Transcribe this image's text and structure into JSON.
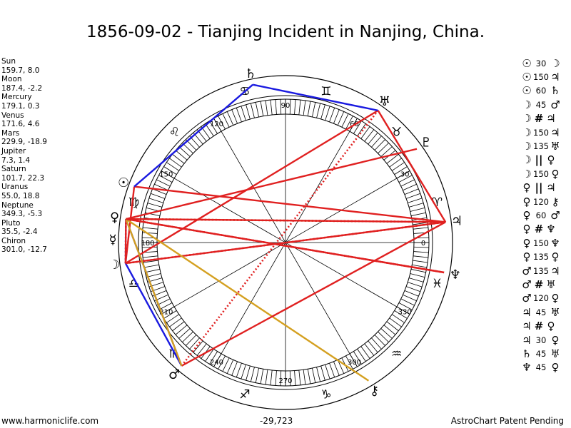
{
  "title": "1856-09-02 - Tianjing Incident in Nanjing, China.",
  "planets": [
    {
      "name": "Sun",
      "glyph": "☉",
      "pos": "159.7, 8.0",
      "lon": 159.7
    },
    {
      "name": "Moon",
      "glyph": "☽",
      "pos": "187.4, -2.2",
      "lon": 187.4
    },
    {
      "name": "Mercury",
      "glyph": "☿",
      "pos": "179.1, 0.3",
      "lon": 179.1
    },
    {
      "name": "Venus",
      "glyph": "♀",
      "pos": "171.6, 4.6",
      "lon": 171.6
    },
    {
      "name": "Mars",
      "glyph": "♂",
      "pos": "229.9, -18.9",
      "lon": 229.9
    },
    {
      "name": "Jupiter",
      "glyph": "♃",
      "pos": "7.3, 1.4",
      "lon": 7.3
    },
    {
      "name": "Saturn",
      "glyph": "♄",
      "pos": "101.7, 22.3",
      "lon": 101.7
    },
    {
      "name": "Uranus",
      "glyph": "♅",
      "pos": "55.0, 18.8",
      "lon": 55.0
    },
    {
      "name": "Neptune",
      "glyph": "♆",
      "pos": "349.3, -5.3",
      "lon": 349.3
    },
    {
      "name": "Pluto",
      "glyph": "♇",
      "pos": "35.5, -2.4",
      "lon": 35.5
    },
    {
      "name": "Chiron",
      "glyph": "⚷",
      "pos": "301.0, -12.7",
      "lon": 301.0
    }
  ],
  "zodiac_glyphs": [
    "♈",
    "♉",
    "♊",
    "♋",
    "♌",
    "♍",
    "♎",
    "♏",
    "♐",
    "♑",
    "♒",
    "♓"
  ],
  "degree_labels": [
    "0",
    "30",
    "60",
    "90",
    "120",
    "150",
    "180",
    "210",
    "240",
    "270",
    "300",
    "330"
  ],
  "aspects": [
    {
      "p1": "☉",
      "aspect": "30",
      "p2": "☽",
      "color": "#e02020",
      "style": "solid"
    },
    {
      "p1": "☉",
      "aspect": "150",
      "p2": "♃",
      "color": "#e02020",
      "style": "solid"
    },
    {
      "p1": "☉",
      "aspect": "60",
      "p2": "♄",
      "color": "#1a1ae0",
      "style": "solid"
    },
    {
      "p1": "☽",
      "aspect": "45",
      "p2": "♂",
      "color": "#1a1ae0",
      "style": "solid"
    },
    {
      "p1": "☽",
      "aspect": "#",
      "p2": "♃",
      "color": "#e02020",
      "style": "dotted"
    },
    {
      "p1": "☽",
      "aspect": "150",
      "p2": "♃",
      "color": "#e02020",
      "style": "solid"
    },
    {
      "p1": "☽",
      "aspect": "135",
      "p2": "♅",
      "color": "#e02020",
      "style": "solid"
    },
    {
      "p1": "☽",
      "aspect": "||",
      "p2": "♀",
      "color": "#1a1ae0",
      "style": "dotted"
    },
    {
      "p1": "☽",
      "aspect": "150",
      "p2": "♀",
      "color": "#e02020",
      "style": "solid"
    },
    {
      "p1": "♀",
      "aspect": "||",
      "p2": "♃",
      "color": "#d4a020",
      "style": "dotted"
    },
    {
      "p1": "♀",
      "aspect": "120",
      "p2": "⚷",
      "color": "#d4a020",
      "style": "solid"
    },
    {
      "p1": "♀",
      "aspect": "60",
      "p2": "♂",
      "color": "#1a1ae0",
      "style": "solid"
    },
    {
      "p1": "♀",
      "aspect": "#",
      "p2": "♆",
      "color": "#e02020",
      "style": "dotted"
    },
    {
      "p1": "♀",
      "aspect": "150",
      "p2": "♆",
      "color": "#e02020",
      "style": "solid"
    },
    {
      "p1": "♀",
      "aspect": "135",
      "p2": "♀",
      "color": "#e02020",
      "style": "solid"
    },
    {
      "p1": "♂",
      "aspect": "135",
      "p2": "♃",
      "color": "#e02020",
      "style": "solid"
    },
    {
      "p1": "♂",
      "aspect": "#",
      "p2": "♅",
      "color": "#e02020",
      "style": "dotted"
    },
    {
      "p1": "♂",
      "aspect": "120",
      "p2": "♀",
      "color": "#d4a020",
      "style": "solid"
    },
    {
      "p1": "♃",
      "aspect": "45",
      "p2": "♅",
      "color": "#e02020",
      "style": "solid"
    },
    {
      "p1": "♃",
      "aspect": "#",
      "p2": "♀",
      "color": "#e02020",
      "style": "dotted"
    },
    {
      "p1": "♃",
      "aspect": "30",
      "p2": "♀",
      "color": "#e02020",
      "style": "solid"
    },
    {
      "p1": "♄",
      "aspect": "45",
      "p2": "♅",
      "color": "#1a1ae0",
      "style": "solid"
    },
    {
      "p1": "♆",
      "aspect": "45",
      "p2": "♀",
      "color": "#e02020",
      "style": "solid"
    }
  ],
  "footer": {
    "website": "www.harmoniclife.com",
    "center_value": "-29,723",
    "patent": "AstroChart Patent Pending"
  }
}
